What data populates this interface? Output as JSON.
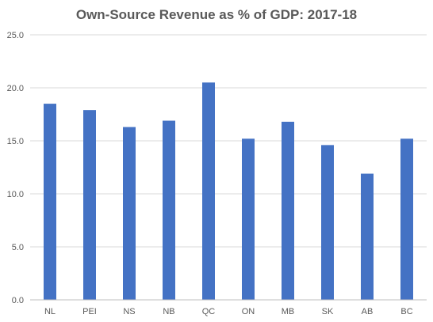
{
  "chart_data": {
    "type": "bar",
    "title": "Own-Source Revenue as % of GDP: 2017-18",
    "xlabel": "",
    "ylabel": "",
    "categories": [
      "NL",
      "PEI",
      "NS",
      "NB",
      "QC",
      "ON",
      "MB",
      "SK",
      "AB",
      "BC"
    ],
    "series": [
      {
        "values": [
          18.5,
          17.9,
          16.3,
          16.9,
          20.5,
          15.2,
          16.8,
          14.6,
          11.9,
          15.2
        ]
      }
    ],
    "ylim": [
      0,
      25
    ],
    "yticks": [
      "0.0",
      "5.0",
      "10.0",
      "15.0",
      "20.0",
      "25.0"
    ],
    "ytick_values": [
      0,
      5,
      10,
      15,
      20,
      25
    ],
    "grid": true,
    "legend": "none",
    "colors": {
      "bar": "#4472C4",
      "grid": "#D9D9D9",
      "text": "#595959"
    }
  }
}
